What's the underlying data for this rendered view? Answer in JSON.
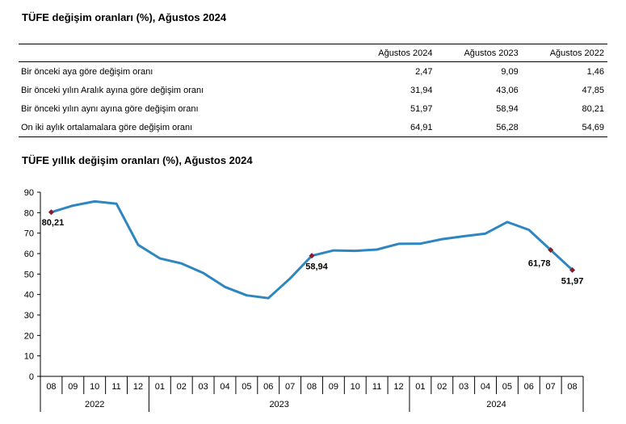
{
  "table": {
    "title": "TÜFE değişim oranları (%), Ağustos 2024",
    "headers": [
      "Ağustos 2024",
      "Ağustos 2023",
      "Ağustos 2022"
    ],
    "rows": [
      {
        "label": "Bir önceki aya göre değişim oranı",
        "values": [
          "2,47",
          "9,09",
          "1,46"
        ]
      },
      {
        "label": "Bir önceki yılın Aralık ayına göre değişim oranı",
        "values": [
          "31,94",
          "43,06",
          "47,85"
        ]
      },
      {
        "label": "Bir önceki yılın aynı ayına göre değişim oranı",
        "values": [
          "51,97",
          "58,94",
          "80,21"
        ]
      },
      {
        "label": "On iki aylık ortalamalara göre değişim oranı",
        "values": [
          "64,91",
          "56,28",
          "54,69"
        ]
      }
    ]
  },
  "chart_data": {
    "type": "line",
    "title": "TÜFE yıllık değişim oranları (%), Ağustos 2024",
    "xlabel": "",
    "ylabel": "",
    "ylim": [
      0,
      90
    ],
    "yticks": [
      0,
      10,
      20,
      30,
      40,
      50,
      60,
      70,
      80,
      90
    ],
    "grid": false,
    "categories": [
      "08",
      "09",
      "10",
      "11",
      "12",
      "01",
      "02",
      "03",
      "04",
      "05",
      "06",
      "07",
      "08",
      "09",
      "10",
      "11",
      "12",
      "01",
      "02",
      "03",
      "04",
      "05",
      "06",
      "07",
      "08"
    ],
    "year_groups": [
      {
        "label": "2022",
        "span": 5
      },
      {
        "label": "2023",
        "span": 12
      },
      {
        "label": "2024",
        "span": 8
      }
    ],
    "series": [
      {
        "color": "#2e86c1",
        "values": [
          80.21,
          83.45,
          85.51,
          84.39,
          64.27,
          57.68,
          55.18,
          50.51,
          43.68,
          39.59,
          38.21,
          47.83,
          58.94,
          61.53,
          61.36,
          61.98,
          64.77,
          64.86,
          67.07,
          68.5,
          69.8,
          75.45,
          71.6,
          61.78,
          51.97
        ]
      }
    ],
    "markers": {
      "color": "#8b1a2b",
      "points": [
        {
          "index": 0,
          "label": "80,21"
        },
        {
          "index": 12,
          "label": "58,94"
        },
        {
          "index": 23,
          "label": "61,78"
        },
        {
          "index": 24,
          "label": "51,97"
        }
      ]
    }
  }
}
